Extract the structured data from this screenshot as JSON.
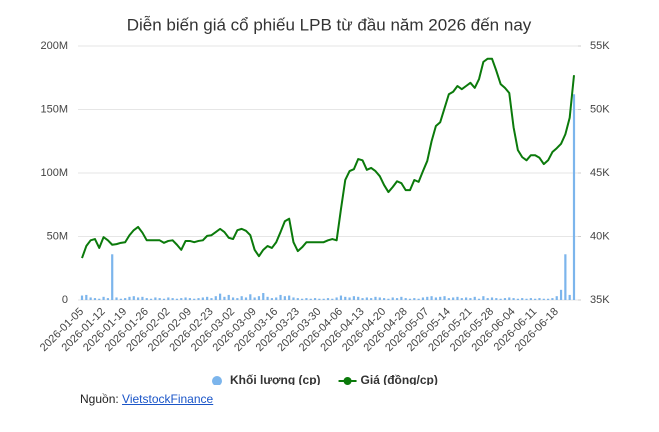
{
  "chart_data": {
    "type": "combo",
    "title": "Diễn biến giá cổ phiếu LPB từ đầu năm 2026 đến nay",
    "categories": [
      "2026-01-05",
      null,
      null,
      null,
      null,
      "2026-01-12",
      null,
      null,
      null,
      null,
      "2026-01-19",
      null,
      null,
      null,
      null,
      "2026-01-26",
      null,
      null,
      null,
      null,
      "2026-02-02",
      null,
      null,
      null,
      null,
      "2026-02-09",
      null,
      null,
      null,
      null,
      "2026-02-23",
      null,
      null,
      null,
      null,
      "2026-03-02",
      null,
      null,
      null,
      null,
      "2026-03-09",
      null,
      null,
      null,
      null,
      "2026-03-16",
      null,
      null,
      null,
      null,
      "2026-03-23",
      null,
      null,
      null,
      null,
      "2026-03-30",
      null,
      null,
      null,
      null,
      "2026-04-06",
      null,
      null,
      null,
      null,
      "2026-04-13",
      null,
      null,
      null,
      null,
      "2026-04-20",
      null,
      null,
      null,
      null,
      "2026-04-28",
      null,
      null,
      null,
      null,
      "2026-05-07",
      null,
      null,
      null,
      null,
      "2026-05-14",
      null,
      null,
      null,
      null,
      "2026-05-21",
      null,
      null,
      null,
      null,
      "2026-05-28",
      null,
      null,
      null,
      null,
      "2026-06-04",
      null,
      null,
      null,
      null,
      "2026-06-11",
      null,
      null,
      null,
      null,
      "2026-06-18",
      null,
      null,
      null,
      null
    ],
    "series": [
      {
        "name": "Khối lượng (cp)",
        "type": "bar",
        "color": "#7cb5ec",
        "values": [
          3500000,
          4000000,
          2000000,
          1500000,
          1000000,
          2500000,
          1500000,
          36000000,
          2000000,
          1000000,
          1500000,
          2500000,
          3000000,
          2000000,
          2500000,
          1500000,
          1000000,
          2000000,
          1500000,
          1000000,
          2000000,
          1500000,
          1000000,
          1500000,
          2000000,
          1500000,
          1000000,
          1500000,
          2000000,
          2500000,
          1500000,
          3000000,
          5000000,
          2500000,
          4000000,
          2000000,
          1500000,
          3000000,
          2000000,
          4500000,
          2000000,
          3000000,
          5500000,
          2500000,
          1500000,
          2000000,
          4000000,
          3000000,
          3500000,
          2000000,
          1500000,
          1000000,
          1500000,
          1000000,
          1500000,
          1000000,
          1000000,
          1500000,
          1000000,
          2000000,
          3500000,
          2500000,
          2000000,
          3000000,
          2500000,
          1500000,
          2000000,
          1500000,
          2500000,
          2000000,
          1500000,
          1000000,
          2000000,
          1500000,
          2500000,
          1500000,
          1000000,
          1500000,
          1000000,
          2000000,
          2500000,
          3000000,
          2000000,
          2500000,
          3000000,
          1500000,
          2000000,
          2500000,
          1500000,
          2000000,
          1500000,
          2500000,
          1000000,
          3000000,
          1500000,
          2000000,
          1500000,
          1000000,
          1500000,
          2000000,
          1500000,
          1000000,
          1500000,
          1000000,
          1500000,
          1000000,
          1500000,
          1000000,
          1000000,
          1500000,
          3000000,
          8000000,
          36000000,
          4000000,
          162000000
        ]
      },
      {
        "name": "Giá (đồng/cp)",
        "type": "line",
        "axis": "y2",
        "color": "#0b7a0b",
        "values": [
          38300,
          39250,
          39700,
          39800,
          39100,
          39950,
          39700,
          39350,
          39400,
          39500,
          39550,
          40100,
          40500,
          40750,
          40300,
          39700,
          39700,
          39700,
          39700,
          39500,
          39650,
          39700,
          39350,
          38950,
          39650,
          39650,
          39550,
          39650,
          39700,
          40050,
          40100,
          40350,
          40600,
          40350,
          39900,
          39800,
          40500,
          40600,
          40450,
          40100,
          38950,
          38450,
          38950,
          39250,
          39100,
          39550,
          40350,
          41200,
          41400,
          39550,
          38850,
          39150,
          39550,
          39550,
          39550,
          39550,
          39550,
          39700,
          39800,
          39700,
          42150,
          44450,
          45150,
          45300,
          46100,
          46000,
          45250,
          45400,
          45150,
          44750,
          44050,
          43500,
          43900,
          44350,
          44200,
          43650,
          43650,
          44450,
          44300,
          45150,
          45950,
          47500,
          48700,
          49000,
          50100,
          51200,
          51400,
          51850,
          51600,
          51850,
          52100,
          51700,
          52400,
          53750,
          54000,
          54000,
          53050,
          52000,
          51700,
          51300,
          48600,
          46800,
          46250,
          46000,
          46400,
          46400,
          46200,
          45700,
          46000,
          46650,
          46950,
          47300,
          48050,
          49350,
          52700
        ]
      }
    ],
    "ylim": [
      0,
      200000000
    ],
    "yticks": [
      0,
      {
        "value": 50000000,
        "label": "50M"
      },
      {
        "value": 100000000,
        "label": "100M"
      },
      {
        "value": 150000000,
        "label": "150M"
      },
      {
        "value": 200000000,
        "label": "200M"
      }
    ],
    "y2lim": [
      35000,
      55000
    ],
    "y2ticks": [
      {
        "value": 35000,
        "label": "35K"
      },
      {
        "value": 40000,
        "label": "40K"
      },
      {
        "value": 45000,
        "label": "45K"
      },
      {
        "value": 50000,
        "label": "50K"
      },
      {
        "value": 55000,
        "label": "55K"
      }
    ],
    "grid": true,
    "legend": "bottom"
  },
  "source": {
    "label": "Nguồn:",
    "name": "VietstockFinance"
  }
}
